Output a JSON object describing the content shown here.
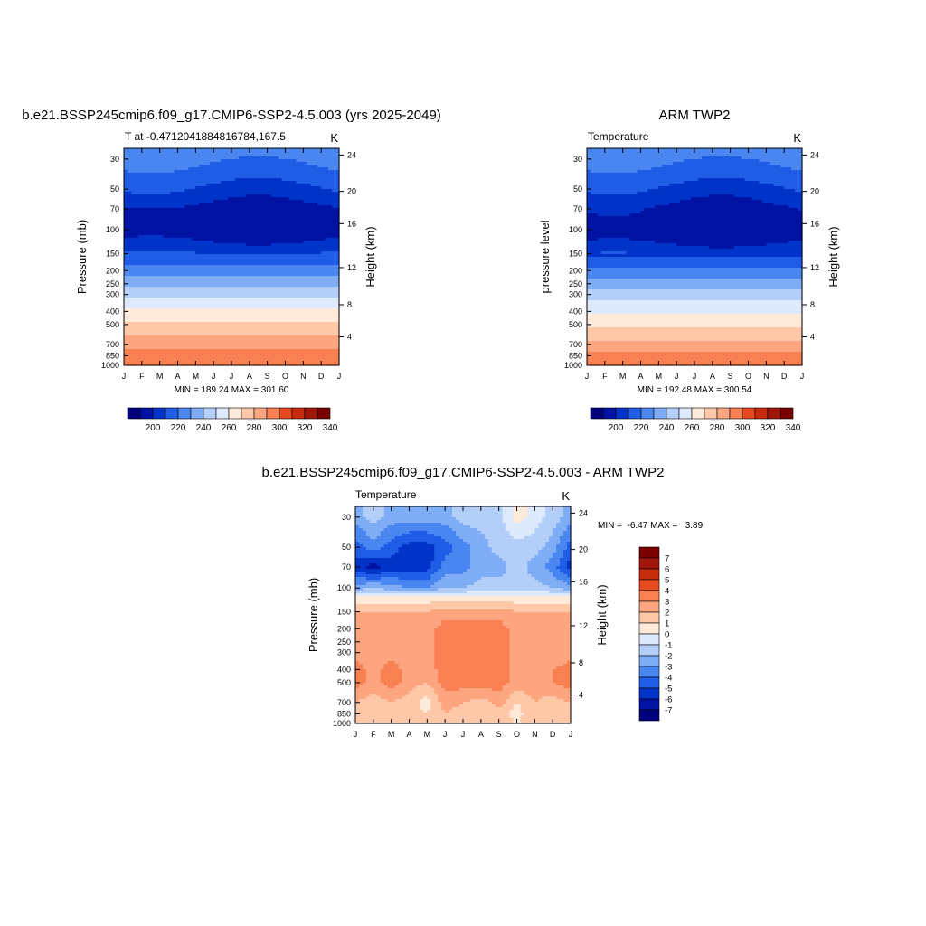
{
  "colors": {
    "abs_fills": [
      "#00007f",
      "#0012a3",
      "#0033c8",
      "#1f5de6",
      "#4a86f0",
      "#7eacf5",
      "#b3cff9",
      "#dde9fc",
      "#ffe9d9",
      "#fdc7a8",
      "#fca57e",
      "#f98052",
      "#e84a1f",
      "#c62b0e",
      "#a0160a",
      "#7d0000"
    ],
    "diff_fills": [
      "#00007f",
      "#0012a3",
      "#0033c8",
      "#1f5de6",
      "#4a86f0",
      "#7eacf5",
      "#b3cff9",
      "#dde9fc",
      "#ffe9d9",
      "#fdc7a8",
      "#fca57e",
      "#f98052",
      "#e84a1f",
      "#c62b0e",
      "#a0160a",
      "#7d0000"
    ]
  },
  "chart_data": [
    {
      "type": "heatmap",
      "title": "b.e21.BSSP245cmip6.f09_g17.CMIP6-SSP2-4.5.003 (yrs 2025-2049)",
      "left_string": "T at -0.4712041884816784,167.5",
      "right_string": "K",
      "ylabel": "Pressure (mb)",
      "ylabel_right": "Height (km)",
      "x_ticks": [
        "J",
        "F",
        "M",
        "A",
        "M",
        "J",
        "J",
        "A",
        "S",
        "O",
        "N",
        "D",
        "J"
      ],
      "y_ticks": [
        "30",
        "50",
        "70",
        "100",
        "150",
        "200",
        "250",
        "300",
        "400",
        "500",
        "700",
        "850",
        "1000"
      ],
      "y_right_ticks": [
        "24",
        "20",
        "16",
        "12",
        "8",
        "4"
      ],
      "stats": "MIN = 189.24 MAX = 301.60",
      "levels": [
        190,
        200,
        210,
        220,
        230,
        240,
        250,
        260,
        270,
        280,
        290,
        300,
        310,
        320,
        330,
        340
      ],
      "legend_labels": [
        "200",
        "220",
        "240",
        "260",
        "280",
        "300",
        "320",
        "340"
      ],
      "profile_p": [
        1000,
        850,
        700,
        500,
        400,
        300,
        250,
        200,
        150,
        120,
        100,
        70,
        50,
        30,
        25
      ],
      "profile_T": [
        299,
        295,
        286,
        272,
        262,
        247,
        238,
        224,
        210,
        200,
        193,
        196,
        208,
        222,
        226
      ],
      "seasonal_p": [
        100,
        70,
        50,
        30
      ],
      "seasonal_amp": [
        3,
        4,
        5,
        3
      ]
    },
    {
      "type": "heatmap",
      "title": "ARM TWP2",
      "left_string": "Temperature",
      "right_string": "K",
      "ylabel": "pressure level",
      "ylabel_right": "Height (km)",
      "x_ticks": [
        "J",
        "F",
        "M",
        "A",
        "M",
        "J",
        "J",
        "A",
        "S",
        "O",
        "N",
        "D",
        "J"
      ],
      "y_ticks": [
        "30",
        "50",
        "70",
        "100",
        "150",
        "200",
        "250",
        "300",
        "400",
        "500",
        "700",
        "850",
        "1000"
      ],
      "y_right_ticks": [
        "24",
        "20",
        "16",
        "12",
        "8",
        "4"
      ],
      "stats": "MIN = 192.48 MAX = 300.54",
      "levels": [
        190,
        200,
        210,
        220,
        230,
        240,
        250,
        260,
        270,
        280,
        290,
        300,
        310,
        320,
        330,
        340
      ],
      "legend_labels": [
        "200",
        "220",
        "240",
        "260",
        "280",
        "300",
        "320",
        "340"
      ],
      "profile_p": [
        1000,
        850,
        700,
        500,
        400,
        300,
        250,
        200,
        150,
        120,
        100,
        70,
        50,
        30,
        25
      ],
      "profile_T": [
        297,
        293,
        284,
        269,
        259,
        245,
        236,
        222,
        208,
        198,
        193,
        197,
        208,
        222,
        226
      ],
      "seasonal_p": [
        100,
        70,
        50,
        30
      ],
      "seasonal_amp": [
        3,
        5,
        5,
        3
      ]
    },
    {
      "type": "heatmap",
      "title": "b.e21.BSSP245cmip6.f09_g17.CMIP6-SSP2-4.5.003 - ARM TWP2",
      "left_string": "Temperature",
      "right_string": "K",
      "ylabel": "Pressure (mb)",
      "ylabel_right": "Height (km)",
      "x_ticks": [
        "J",
        "F",
        "M",
        "A",
        "M",
        "J",
        "J",
        "A",
        "S",
        "O",
        "N",
        "D",
        "J"
      ],
      "y_ticks": [
        "30",
        "50",
        "70",
        "100",
        "150",
        "200",
        "250",
        "300",
        "400",
        "500",
        "700",
        "850",
        "1000"
      ],
      "y_right_ticks": [
        "24",
        "20",
        "16",
        "12",
        "8",
        "4"
      ],
      "stats": "MIN =  -6.47 MAX =   3.89",
      "levels": [
        -7,
        -6,
        -5,
        -4,
        -3,
        -2,
        -1,
        0,
        1,
        2,
        3,
        4,
        5,
        6,
        7
      ],
      "legend_labels": [
        "7",
        "6",
        "5",
        "4",
        "3",
        "2",
        "1",
        "0",
        "-1",
        "-2",
        "-3",
        "-4",
        "-5",
        "-6",
        "-7"
      ],
      "months": [
        0,
        1,
        2,
        3,
        4,
        5,
        6,
        7,
        8,
        9,
        10,
        11,
        12
      ],
      "pressure": [
        1000,
        850,
        700,
        500,
        400,
        300,
        200,
        150,
        120,
        100,
        70,
        50,
        30
      ],
      "values": [
        [
          1.5,
          1.0,
          1.5,
          1.5,
          1.0,
          1.5,
          1.0,
          1.5,
          1.5,
          1.0,
          1.5,
          1.5,
          1.5
        ],
        [
          2.0,
          1.5,
          2.0,
          1.5,
          1.0,
          2.0,
          1.5,
          1.5,
          1.5,
          0.5,
          2.0,
          2.0,
          2.0
        ],
        [
          2.0,
          1.5,
          2.0,
          1.5,
          0.5,
          2.5,
          2.0,
          1.5,
          2.5,
          1.0,
          2.0,
          1.5,
          2.0
        ],
        [
          3.5,
          2.5,
          3.5,
          2.5,
          2.0,
          3.5,
          3.5,
          3.5,
          3.5,
          2.5,
          2.5,
          3.0,
          3.5
        ],
        [
          3.5,
          2.5,
          3.5,
          2.5,
          2.5,
          3.5,
          3.5,
          3.5,
          3.5,
          2.5,
          2.5,
          3.0,
          3.5
        ],
        [
          2.5,
          2.5,
          2.5,
          2.5,
          2.5,
          3.5,
          3.5,
          3.5,
          3.5,
          2.5,
          2.5,
          2.0,
          2.5
        ],
        [
          2.5,
          2.5,
          2.5,
          2.5,
          2.5,
          3.5,
          3.5,
          3.5,
          3.5,
          2.5,
          2.5,
          2.5,
          2.5
        ],
        [
          2.0,
          2.0,
          2.0,
          2.0,
          2.0,
          2.5,
          2.5,
          2.5,
          2.5,
          2.0,
          2.0,
          2.0,
          2.0
        ],
        [
          0.5,
          0.5,
          0.5,
          0.5,
          0.5,
          0.5,
          0.5,
          0.5,
          0.5,
          0.5,
          0.5,
          0.5,
          0.5
        ],
        [
          -2.5,
          -2.0,
          -2.5,
          -3.0,
          -3.0,
          -2.0,
          -2.0,
          -1.5,
          -1.5,
          -1.5,
          -1.5,
          -2.0,
          -2.5
        ],
        [
          -5.5,
          -6.5,
          -5.5,
          -5.5,
          -5.5,
          -3.5,
          -3.5,
          -2.5,
          -2.5,
          -1.5,
          -2.5,
          -3.5,
          -5.5
        ],
        [
          -4.5,
          -3.5,
          -4.5,
          -5.5,
          -5.5,
          -4.5,
          -3.5,
          -2.5,
          -1.5,
          -1.5,
          -1.5,
          -2.5,
          -4.5
        ],
        [
          -2.5,
          -1.5,
          -2.5,
          -2.5,
          -2.5,
          -2.5,
          -1.5,
          -1.5,
          -1.5,
          0.5,
          -0.5,
          -1.5,
          -2.5
        ]
      ]
    }
  ]
}
